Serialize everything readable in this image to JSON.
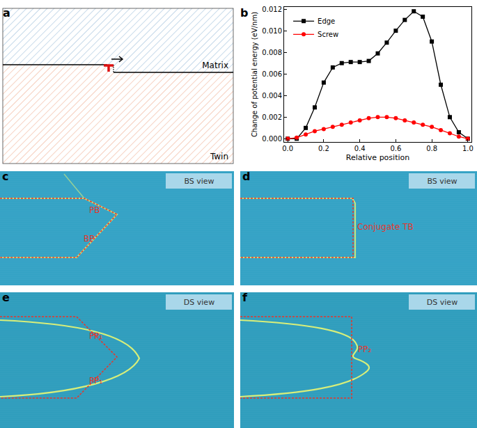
{
  "panels": {
    "a": {
      "label": "a",
      "regions": [
        "Matrix",
        "Twin"
      ]
    },
    "b": {
      "label": "b"
    },
    "c": {
      "label": "c",
      "view": "BS view",
      "boundaries": [
        "PB",
        "BP"
      ]
    },
    "d": {
      "label": "d",
      "view": "BS view",
      "boundaries": [
        "Conjugate TB"
      ]
    },
    "e": {
      "label": "e",
      "view": "DS view",
      "boundaries": [
        "PP₁",
        "PP₁"
      ]
    },
    "f": {
      "label": "f",
      "view": "DS view",
      "boundaries": [
        "PP₂"
      ]
    }
  },
  "chart_data": {
    "type": "line",
    "x_label": "Relative position",
    "y_label": "Change of potential energy (eV/nm)",
    "x": [
      0,
      0.05,
      0.1,
      0.15,
      0.2,
      0.25,
      0.3,
      0.35,
      0.4,
      0.45,
      0.5,
      0.55,
      0.6,
      0.65,
      0.7,
      0.75,
      0.8,
      0.85,
      0.9,
      0.95,
      1.0
    ],
    "series": [
      {
        "name": "Edge",
        "color": "#000000",
        "marker": "square",
        "values": [
          0,
          0,
          0.001,
          0.0029,
          0.0052,
          0.0066,
          0.007,
          0.0071,
          0.0071,
          0.0072,
          0.0079,
          0.0089,
          0.01,
          0.011,
          0.0118,
          0.0113,
          0.009,
          0.005,
          0.002,
          0.0006,
          0
        ]
      },
      {
        "name": "Screw",
        "color": "#ff0000",
        "marker": "circle",
        "values": [
          0,
          0.0001,
          0.0004,
          0.0007,
          0.0009,
          0.0011,
          0.0013,
          0.0015,
          0.0017,
          0.0019,
          0.002,
          0.002,
          0.0019,
          0.0017,
          0.0015,
          0.0013,
          0.0011,
          0.0008,
          0.0005,
          0.0002,
          0
        ]
      }
    ],
    "xlim": [
      -0.02,
      1.02
    ],
    "xticks": [
      {
        "value": 0,
        "label": "0.0"
      },
      {
        "value": 0.2,
        "label": "0.2"
      },
      {
        "value": 0.4,
        "label": "0.4"
      },
      {
        "value": 0.6,
        "label": "0.6"
      },
      {
        "value": 0.8,
        "label": "0.8"
      },
      {
        "value": 1,
        "label": "1.0"
      }
    ],
    "ylim": [
      -0.0003,
      0.0122
    ],
    "yticks": [
      {
        "value": 0,
        "label": "0.000"
      },
      {
        "value": 0.002,
        "label": "0.002"
      },
      {
        "value": 0.004,
        "label": "0.004"
      },
      {
        "value": 0.006,
        "label": "0.006"
      },
      {
        "value": 0.008,
        "label": "0.008"
      },
      {
        "value": 0.01,
        "label": "0.010"
      },
      {
        "value": 0.012,
        "label": "0.012"
      }
    ],
    "legend": "upper left",
    "grid": false
  }
}
